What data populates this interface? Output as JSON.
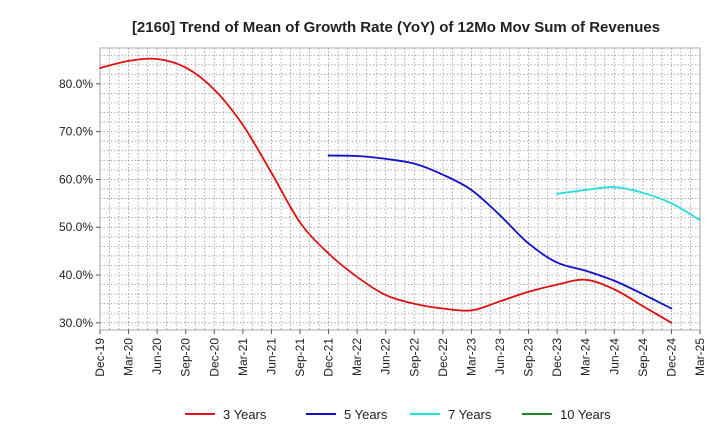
{
  "chart_data": {
    "type": "line",
    "title": "[2160]  Trend of Mean of Growth Rate (YoY) of 12Mo Mov Sum of Revenues",
    "xlabel": "",
    "ylabel": "",
    "ylim": [
      28.5,
      87.5
    ],
    "y_ticks": [
      30,
      40,
      50,
      60,
      70,
      80
    ],
    "y_tick_labels": [
      "30.0%",
      "40.0%",
      "50.0%",
      "60.0%",
      "70.0%",
      "80.0%"
    ],
    "x_tick_labels": [
      "Dec-19",
      "Mar-20",
      "Jun-20",
      "Sep-20",
      "Dec-20",
      "Mar-21",
      "Jun-21",
      "Sep-21",
      "Dec-21",
      "Mar-22",
      "Jun-22",
      "Sep-22",
      "Dec-22",
      "Mar-23",
      "Jun-23",
      "Sep-23",
      "Dec-23",
      "Mar-24",
      "Jun-24",
      "Sep-24",
      "Dec-24",
      "Mar-25"
    ],
    "grid": true,
    "legend_position": "bottom",
    "series": [
      {
        "name": "3 Years",
        "color": "#dd1111",
        "points": [
          [
            0,
            83.3
          ],
          [
            1,
            84.8
          ],
          [
            2,
            85.2
          ],
          [
            3,
            83.4
          ],
          [
            4,
            78.8
          ],
          [
            5,
            71.4
          ],
          [
            6,
            61.4
          ],
          [
            7,
            51.0
          ],
          [
            8,
            44.5
          ],
          [
            9,
            39.6
          ],
          [
            10,
            35.8
          ],
          [
            11,
            34.0
          ],
          [
            12,
            33.0
          ],
          [
            13,
            32.6
          ],
          [
            14,
            34.5
          ],
          [
            15,
            36.5
          ],
          [
            16,
            38.0
          ],
          [
            17,
            39.0
          ],
          [
            18,
            37.0
          ],
          [
            19,
            33.5
          ],
          [
            20,
            30.0
          ]
        ]
      },
      {
        "name": "5 Years",
        "color": "#1111cc",
        "points": [
          [
            8,
            65.0
          ],
          [
            9,
            64.9
          ],
          [
            10,
            64.3
          ],
          [
            11,
            63.3
          ],
          [
            12,
            61.0
          ],
          [
            13,
            57.8
          ],
          [
            14,
            52.5
          ],
          [
            15,
            46.6
          ],
          [
            16,
            42.6
          ],
          [
            17,
            40.9
          ],
          [
            18,
            38.8
          ],
          [
            19,
            36.0
          ],
          [
            20,
            33.0
          ]
        ]
      },
      {
        "name": "7 Years",
        "color": "#22dddd",
        "points": [
          [
            16,
            57.0
          ],
          [
            17,
            57.8
          ],
          [
            18,
            58.4
          ],
          [
            19,
            57.2
          ],
          [
            20,
            55.0
          ],
          [
            21,
            51.5
          ]
        ]
      },
      {
        "name": "10 Years",
        "color": "#228822",
        "points": []
      }
    ]
  }
}
